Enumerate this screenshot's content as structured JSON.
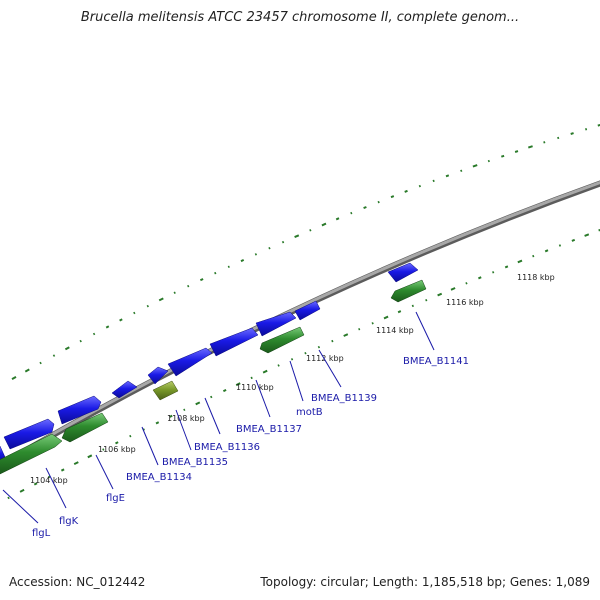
{
  "title": "Brucella melitensis ATCC 23457 chromosome II, complete genom...",
  "footer": {
    "accession": "Accession: NC_012442",
    "summary": "Topology: circular; Length: 1,185,518 bp; Genes: 1,089"
  },
  "scale_labels": [
    "1104 kbp",
    "1106 kbp",
    "1108 kbp",
    "1110 kbp",
    "1112 kbp",
    "1114 kbp",
    "1116 kbp",
    "1118 kbp"
  ],
  "gene_labels": [
    "flgL",
    "flgK",
    "flgE",
    "BMEA_B1134",
    "BMEA_B1135",
    "BMEA_B1136",
    "BMEA_B1137",
    "motB",
    "BMEA_B1139",
    "BMEA_B1141"
  ],
  "colors": {
    "backbone": "#8a8a8a",
    "blue_feature": "#1a1ae6",
    "green_feature": "#2e8b2e",
    "olive_feature": "#7a9a2a",
    "gc_dots": "#2a7a2a",
    "label_text": "#1a1aa8"
  }
}
